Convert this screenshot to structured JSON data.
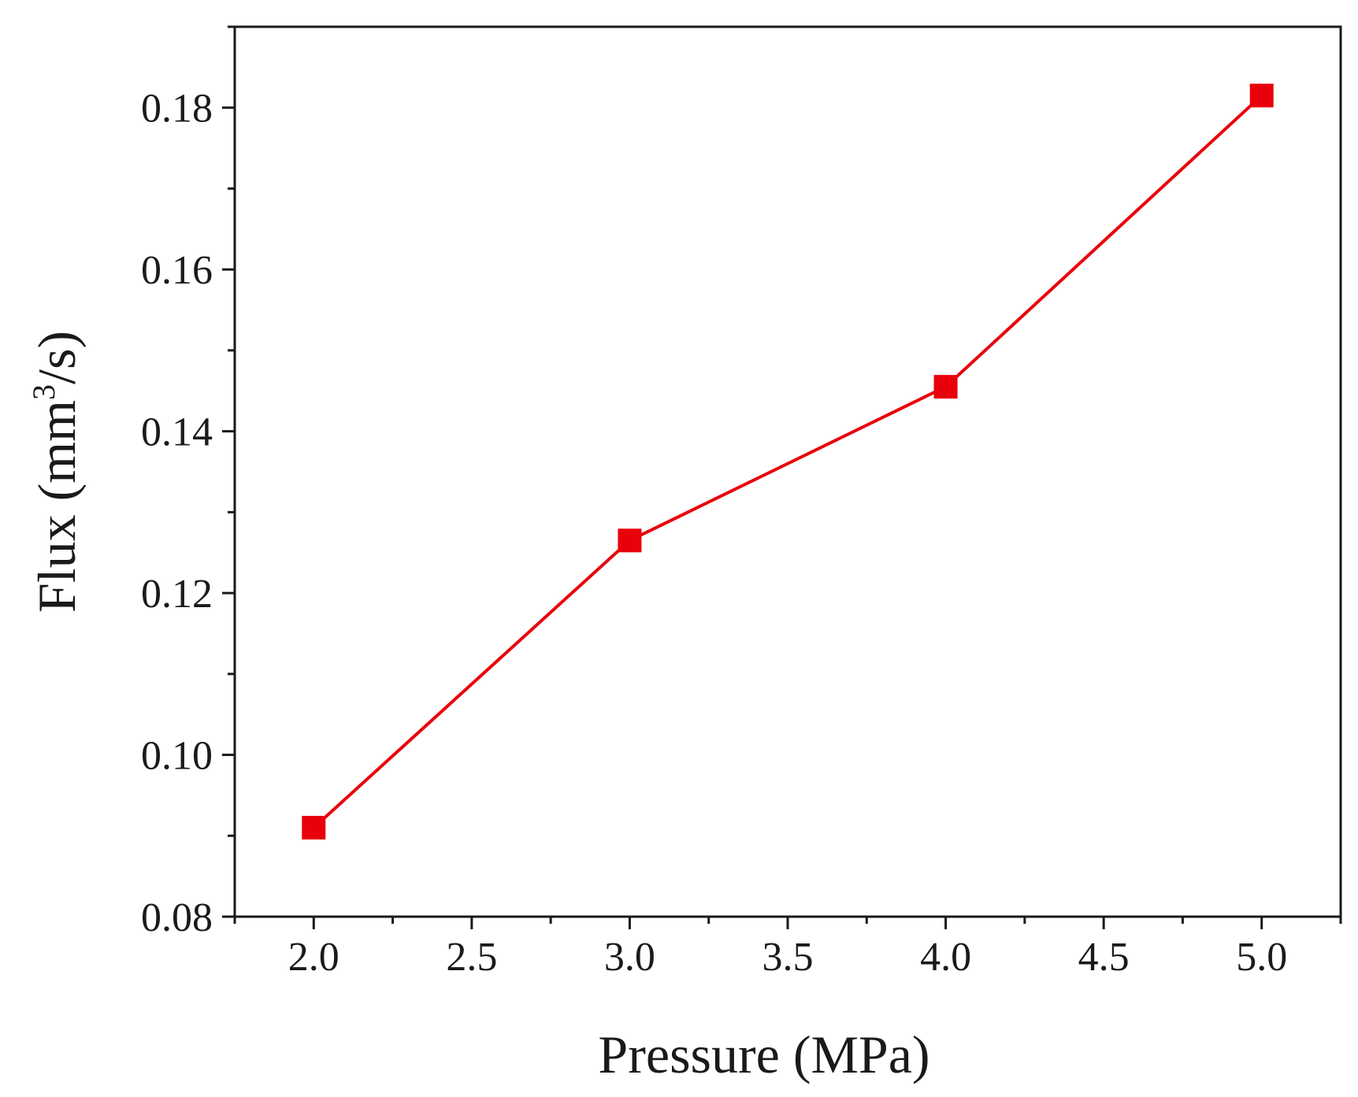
{
  "chart_data": {
    "type": "line",
    "title": "",
    "xlabel": "Pressure (MPa)",
    "ylabel": {
      "prefix": "Flux (mm",
      "superscript": "3",
      "suffix": "/s)"
    },
    "xlim": [
      1.75,
      5.25
    ],
    "ylim": [
      0.08,
      0.19
    ],
    "x_ticks": [
      "2.0",
      "2.5",
      "3.0",
      "3.5",
      "4.0",
      "4.5",
      "5.0"
    ],
    "y_ticks": [
      "0.08",
      "0.10",
      "0.12",
      "0.14",
      "0.16",
      "0.18"
    ],
    "grid": false,
    "series": [
      {
        "name": "Flux",
        "color": "#e8000b",
        "marker": "square",
        "x": [
          2.0,
          3.0,
          4.0,
          5.0
        ],
        "y": [
          0.091,
          0.1265,
          0.1455,
          0.1815
        ]
      }
    ]
  }
}
